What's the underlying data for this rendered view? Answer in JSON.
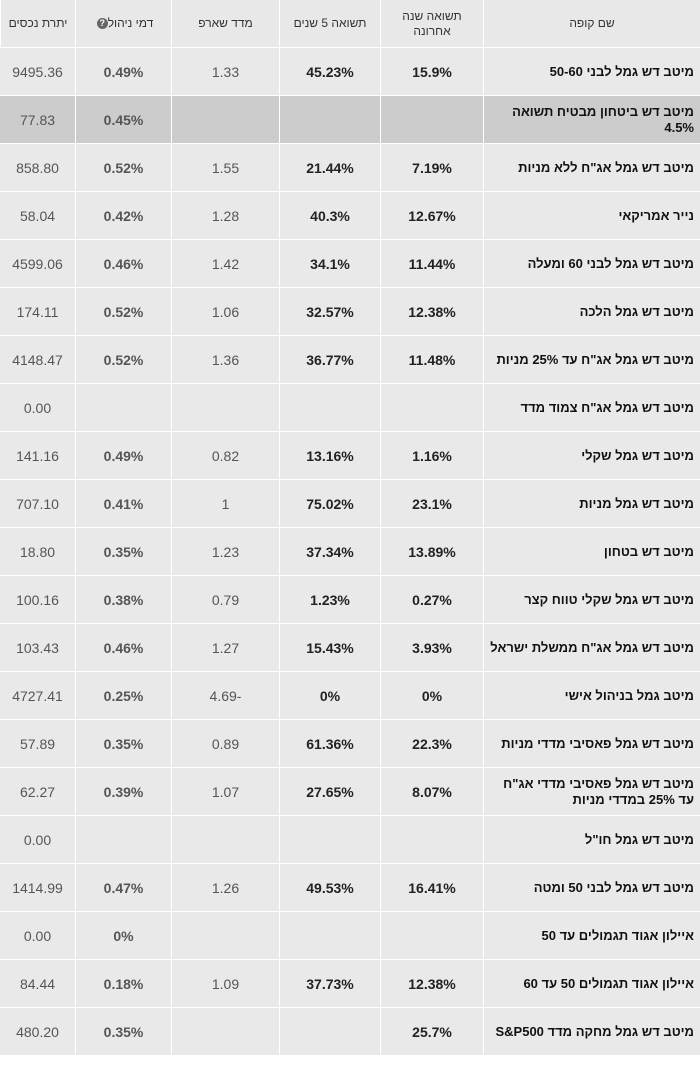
{
  "headers": {
    "fund_name": "שם קופה",
    "last_year_return": "תשואה שנה אחרונה",
    "five_year_return": "תשואה 5 שנים",
    "sharpe": "מדד שארפ",
    "mgmt_fee": "דמי ניהול",
    "assets": "יתרת נכסים"
  },
  "help_icon": "?",
  "rows": [
    {
      "name": "מיטב דש גמל לבני 50-60",
      "last_year": "15.9%",
      "five_year": "45.23%",
      "sharpe": "1.33",
      "fee": "0.49%",
      "assets": "9495.36"
    },
    {
      "name": "מיטב דש ביטחון מבטיח תשואה 4.5%",
      "last_year": "",
      "five_year": "",
      "sharpe": "",
      "fee": "0.45%",
      "assets": "77.83"
    },
    {
      "name": "מיטב דש גמל אג\"ח ללא מניות",
      "last_year": "7.19%",
      "five_year": "21.44%",
      "sharpe": "1.55",
      "fee": "0.52%",
      "assets": "858.80"
    },
    {
      "name": "נייר אמריקאי",
      "last_year": "12.67%",
      "five_year": "40.3%",
      "sharpe": "1.28",
      "fee": "0.42%",
      "assets": "58.04"
    },
    {
      "name": "מיטב דש גמל לבני 60 ומעלה",
      "last_year": "11.44%",
      "five_year": "34.1%",
      "sharpe": "1.42",
      "fee": "0.46%",
      "assets": "4599.06"
    },
    {
      "name": "מיטב דש גמל הלכה",
      "last_year": "12.38%",
      "five_year": "32.57%",
      "sharpe": "1.06",
      "fee": "0.52%",
      "assets": "174.11"
    },
    {
      "name": "מיטב דש גמל אג\"ח עד 25% מניות",
      "last_year": "11.48%",
      "five_year": "36.77%",
      "sharpe": "1.36",
      "fee": "0.52%",
      "assets": "4148.47"
    },
    {
      "name": "מיטב דש גמל אג\"ח צמוד מדד",
      "last_year": "",
      "five_year": "",
      "sharpe": "",
      "fee": "",
      "assets": "0.00"
    },
    {
      "name": "מיטב דש גמל שקלי",
      "last_year": "1.16%",
      "five_year": "13.16%",
      "sharpe": "0.82",
      "fee": "0.49%",
      "assets": "141.16"
    },
    {
      "name": "מיטב דש גמל מניות",
      "last_year": "23.1%",
      "five_year": "75.02%",
      "sharpe": "1",
      "fee": "0.41%",
      "assets": "707.10"
    },
    {
      "name": "מיטב דש בטחון",
      "last_year": "13.89%",
      "five_year": "37.34%",
      "sharpe": "1.23",
      "fee": "0.35%",
      "assets": "18.80"
    },
    {
      "name": "מיטב דש גמל שקלי טווח קצר",
      "last_year": "0.27%",
      "five_year": "1.23%",
      "sharpe": "0.79",
      "fee": "0.38%",
      "assets": "100.16"
    },
    {
      "name": "מיטב דש גמל אג\"ח ממשלת ישראל",
      "last_year": "3.93%",
      "five_year": "15.43%",
      "sharpe": "1.27",
      "fee": "0.46%",
      "assets": "103.43"
    },
    {
      "name": "מיטב גמל בניהול אישי",
      "last_year": "0%",
      "five_year": "0%",
      "sharpe": "-4.69",
      "fee": "0.25%",
      "assets": "4727.41"
    },
    {
      "name": "מיטב דש גמל פאסיבי מדדי מניות",
      "last_year": "22.3%",
      "five_year": "61.36%",
      "sharpe": "0.89",
      "fee": "0.35%",
      "assets": "57.89"
    },
    {
      "name": "מיטב דש גמל פאסיבי מדדי אג\"ח עד 25% במדדי מניות",
      "last_year": "8.07%",
      "five_year": "27.65%",
      "sharpe": "1.07",
      "fee": "0.39%",
      "assets": "62.27"
    },
    {
      "name": "מיטב דש גמל חו\"ל",
      "last_year": "",
      "five_year": "",
      "sharpe": "",
      "fee": "",
      "assets": "0.00"
    },
    {
      "name": "מיטב דש גמל לבני 50 ומטה",
      "last_year": "16.41%",
      "five_year": "49.53%",
      "sharpe": "1.26",
      "fee": "0.47%",
      "assets": "1414.99"
    },
    {
      "name": "איילון אגוד תגמולים עד 50",
      "last_year": "",
      "five_year": "",
      "sharpe": "",
      "fee": "0%",
      "assets": "0.00"
    },
    {
      "name": "איילון אגוד תגמולים 50 עד 60",
      "last_year": "12.38%",
      "five_year": "37.73%",
      "sharpe": "1.09",
      "fee": "0.18%",
      "assets": "84.44"
    },
    {
      "name": "מיטב דש גמל מחקה מדד S&P500",
      "last_year": "25.7%",
      "five_year": "",
      "sharpe": "",
      "fee": "0.35%",
      "assets": "480.20"
    }
  ],
  "colors": {
    "header_bg": "#e8e8e8",
    "row_bg": "#e9e9e9",
    "highlight_row_bg": "#cccccc"
  }
}
